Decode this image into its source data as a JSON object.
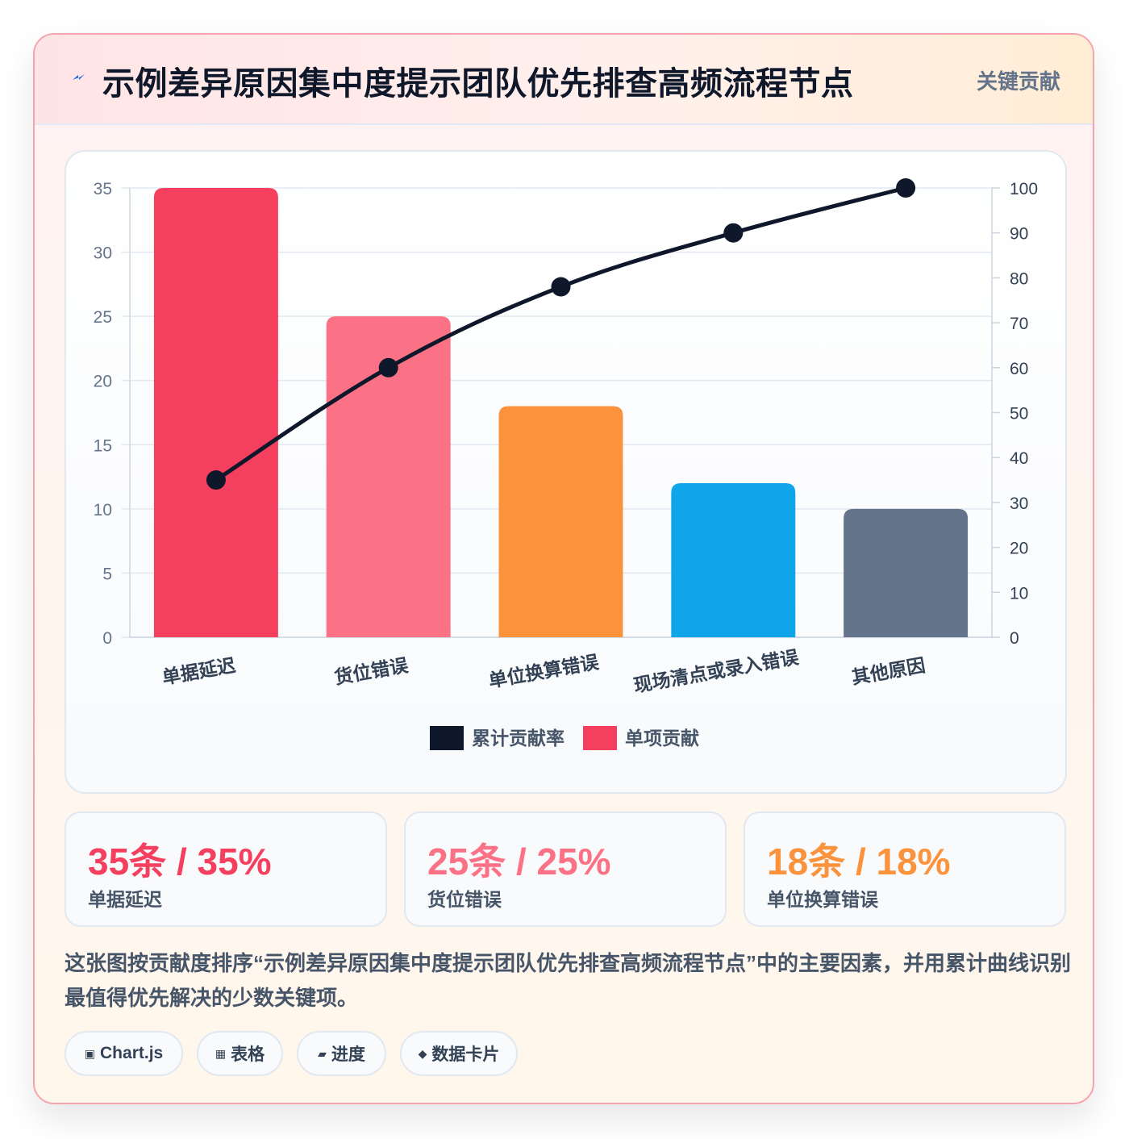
{
  "header": {
    "title": "示例差异原因集中度提示团队优先排查高频流程节点",
    "badge": "关键贡献",
    "icon": "lightning-icon"
  },
  "chart_data": {
    "type": "bar",
    "categories": [
      "单据延迟",
      "货位错误",
      "单位换算错误",
      "现场清点或录入错误",
      "其他原因"
    ],
    "series": [
      {
        "name": "单项贡献",
        "type": "bar",
        "axis": "left",
        "values": [
          35,
          25,
          18,
          12,
          10
        ]
      },
      {
        "name": "累计贡献率",
        "type": "line",
        "axis": "right",
        "values": [
          35,
          60,
          78,
          90,
          100
        ]
      }
    ],
    "bar_colors": [
      "#f43f5e",
      "#fb7185",
      "#fb923c",
      "#0ea5e9",
      "#64748b"
    ],
    "line_color": "#0f172a",
    "ylim_left": [
      0,
      35
    ],
    "yticks_left": [
      0,
      5,
      10,
      15,
      20,
      25,
      30,
      35
    ],
    "ylim_right": [
      0,
      100
    ],
    "yticks_right": [
      0,
      10,
      20,
      30,
      40,
      50,
      60,
      70,
      80,
      90,
      100
    ],
    "legend": [
      {
        "label": "累计贡献率",
        "color": "#0f172a"
      },
      {
        "label": "单项贡献",
        "color": "#f43f5e"
      }
    ],
    "legend_position": "bottom",
    "grid": true
  },
  "stats": [
    {
      "value": "35条 / 35%",
      "label": "单据延迟",
      "color": "#f43f5e"
    },
    {
      "value": "25条 / 25%",
      "label": "货位错误",
      "color": "#fb7185"
    },
    {
      "value": "18条 / 18%",
      "label": "单位换算错误",
      "color": "#fb923c"
    }
  ],
  "description": "这张图按贡献度排序“示例差异原因集中度提示团队优先排查高频流程节点”中的主要因素，并用累计曲线识别最值得优先解决的少数关键项。",
  "tags": [
    {
      "icon": "▣",
      "label": "Chart.js"
    },
    {
      "icon": "▦",
      "label": "表格"
    },
    {
      "icon": "▰",
      "label": "进度"
    },
    {
      "icon": "◆",
      "label": "数据卡片"
    }
  ]
}
